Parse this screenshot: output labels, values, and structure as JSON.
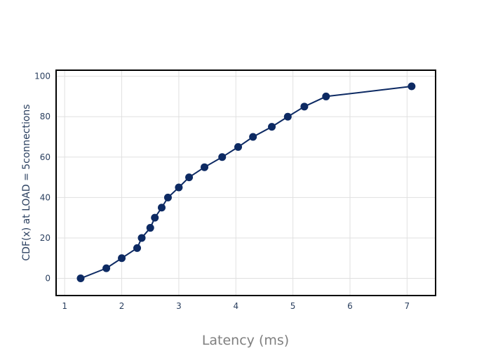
{
  "chart_data": {
    "type": "line",
    "title": "",
    "xlabel": "Latency (ms)",
    "ylabel": "CDF(x) at LOAD = 5connections",
    "xlim": [
      0.85,
      7.5
    ],
    "ylim": [
      -8.5,
      103
    ],
    "x_ticks": [
      "1",
      "2",
      "3",
      "4",
      "5",
      "6",
      "7"
    ],
    "y_ticks": [
      "0",
      "20",
      "40",
      "60",
      "80",
      "100"
    ],
    "grid": true,
    "legend": "none",
    "series": [
      {
        "color": "#0d2a63",
        "x": [
          1.28,
          1.73,
          2.0,
          2.27,
          2.35,
          2.5,
          2.58,
          2.7,
          2.81,
          3.0,
          3.18,
          3.45,
          3.76,
          4.04,
          4.3,
          4.63,
          4.91,
          5.2,
          5.58,
          7.08
        ],
        "y": [
          0,
          5,
          10,
          15,
          20,
          25,
          30,
          35,
          40,
          45,
          50,
          55,
          60,
          65,
          70,
          75,
          80,
          85,
          90,
          95
        ]
      }
    ]
  }
}
